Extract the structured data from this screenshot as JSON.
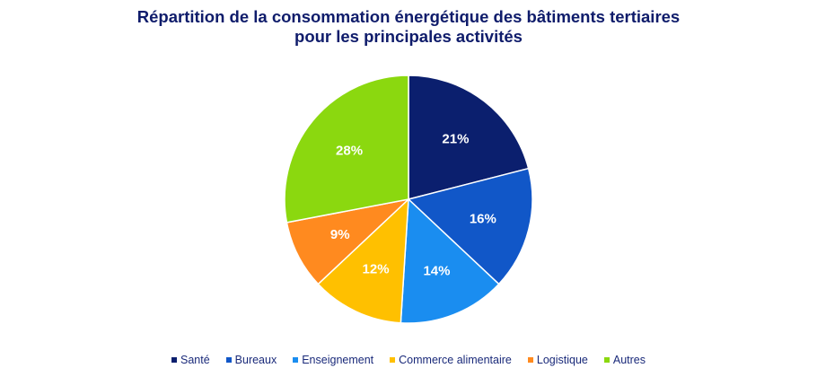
{
  "chart_data": {
    "type": "pie",
    "title": [
      "Répartition de la consommation énergétique des bâtiments tertiaires",
      "pour les principales activités"
    ],
    "categories": [
      "Santé",
      "Bureaux",
      "Enseignement",
      "Commerce alimentaire",
      "Logistique",
      "Autres"
    ],
    "values": [
      21,
      16,
      14,
      12,
      9,
      28
    ],
    "labels": [
      "21%",
      "16%",
      "14%",
      "12%",
      "9%",
      "28%"
    ],
    "colors": [
      "#0b1f6e",
      "#1157c8",
      "#1a8df0",
      "#ffc000",
      "#ff8a1f",
      "#8bd80f"
    ],
    "legend_position": "bottom",
    "start": "top",
    "direction": "clockwise"
  }
}
